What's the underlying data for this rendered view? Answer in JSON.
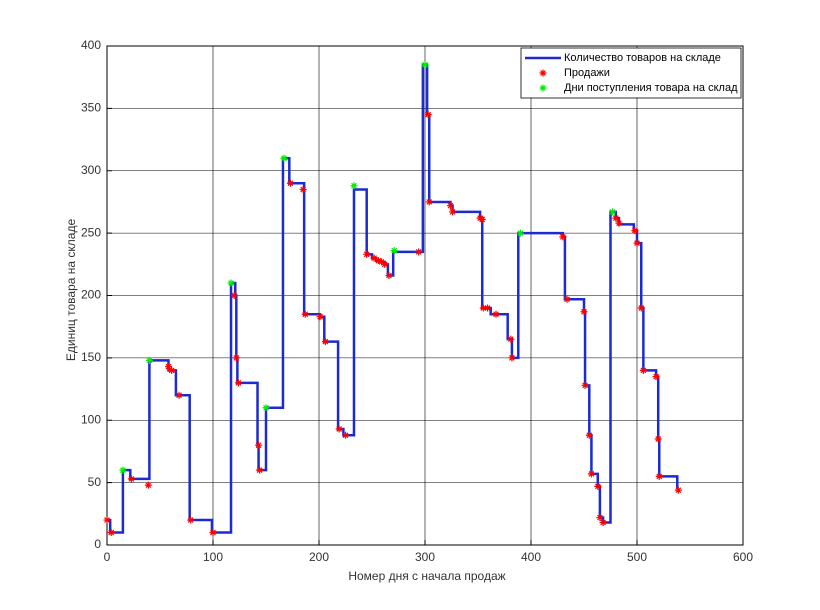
{
  "chart_data": {
    "type": "line",
    "xlabel": "Номер дня с начала продаж",
    "ylabel": "Единиц товара на складе",
    "xlim": [
      0,
      600
    ],
    "xticks": [
      0,
      100,
      200,
      300,
      400,
      500,
      600
    ],
    "ylim": [
      0,
      400
    ],
    "yticks": [
      0,
      50,
      100,
      150,
      200,
      250,
      300,
      350,
      400
    ],
    "grid": true,
    "legend": "northeast",
    "series": [
      {
        "name": "Количество товаров на складе",
        "kind": "line",
        "color": "#1c2ad4",
        "x": [
          0,
          3,
          3,
          15,
          15,
          22,
          22,
          40,
          40,
          58,
          58,
          65,
          65,
          78,
          78,
          99,
          99,
          117,
          117,
          121,
          121,
          122,
          122,
          123,
          123,
          142,
          142,
          143,
          143,
          150,
          150,
          166,
          166,
          172,
          172,
          186,
          186,
          201,
          201,
          205,
          205,
          218,
          218,
          223,
          223,
          233,
          233,
          245,
          245,
          250,
          250,
          254,
          254,
          258,
          258,
          262,
          262,
          265,
          265,
          270,
          270,
          298,
          298,
          302,
          302,
          304,
          304,
          324,
          324,
          326,
          326,
          352,
          352,
          354,
          354,
          362,
          362,
          378,
          378,
          382,
          382,
          388,
          388,
          430,
          430,
          432,
          432,
          450,
          450,
          451,
          451,
          455,
          455,
          457,
          457,
          463,
          463,
          465,
          465,
          468,
          468,
          475,
          475,
          480,
          480,
          483,
          483,
          497,
          497,
          500,
          500,
          504,
          504,
          506,
          506,
          518,
          518,
          520,
          520,
          521,
          521,
          538,
          538
        ],
        "values": [
          20,
          20,
          10,
          10,
          60,
          60,
          53,
          53,
          148,
          148,
          140,
          140,
          120,
          120,
          20,
          20,
          10,
          10,
          210,
          210,
          200,
          200,
          150,
          150,
          130,
          130,
          80,
          80,
          60,
          60,
          110,
          110,
          310,
          310,
          290,
          290,
          185,
          185,
          183,
          183,
          163,
          163,
          93,
          93,
          88,
          88,
          285,
          285,
          233,
          233,
          230,
          230,
          228,
          228,
          227,
          227,
          225,
          225,
          216,
          216,
          235,
          235,
          385,
          385,
          345,
          345,
          275,
          275,
          272,
          272,
          267,
          267,
          262,
          262,
          190,
          190,
          185,
          185,
          165,
          165,
          150,
          150,
          250,
          250,
          247,
          247,
          197,
          197,
          187,
          187,
          128,
          128,
          88,
          88,
          57,
          57,
          47,
          47,
          22,
          22,
          18,
          18,
          267,
          267,
          262,
          262,
          257,
          257,
          252,
          252,
          242,
          242,
          190,
          190,
          140,
          140,
          135,
          135,
          85,
          85,
          55,
          55,
          45
        ]
      },
      {
        "name": "Продажи",
        "kind": "scatter",
        "color": "#ff0000",
        "x": [
          0,
          4,
          23,
          39,
          58,
          61,
          68,
          79,
          100,
          120,
          122,
          124,
          143,
          144,
          173,
          185,
          187,
          201,
          206,
          219,
          225,
          245,
          252,
          256,
          259,
          262,
          266,
          294,
          303,
          304,
          324,
          326,
          352,
          354,
          355,
          359,
          367,
          381,
          382,
          430,
          434,
          450,
          451,
          455,
          457,
          463,
          465,
          468,
          480,
          483,
          498,
          500,
          504,
          506,
          518,
          520,
          521,
          539
        ],
        "values": [
          20,
          10,
          53,
          48,
          143,
          140,
          120,
          20,
          10,
          200,
          150,
          130,
          80,
          60,
          290,
          285,
          185,
          183,
          163,
          93,
          88,
          233,
          230,
          228,
          227,
          225,
          216,
          235,
          345,
          275,
          272,
          267,
          262,
          261,
          190,
          190,
          185,
          165,
          150,
          247,
          197,
          187,
          128,
          88,
          57,
          47,
          22,
          18,
          262,
          258,
          252,
          242,
          190,
          140,
          135,
          85,
          55,
          44
        ]
      },
      {
        "name": "Дни поступления товара на склад",
        "kind": "scatter",
        "color": "#00ee00",
        "x": [
          15,
          40,
          117,
          150,
          167,
          233,
          271,
          300,
          390,
          477
        ],
        "values": [
          60,
          148,
          210,
          110,
          310,
          288,
          236,
          385,
          250,
          267
        ]
      }
    ]
  }
}
